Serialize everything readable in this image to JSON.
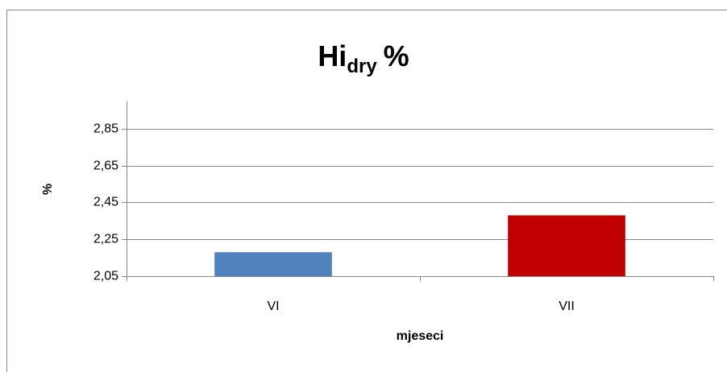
{
  "chart_data": {
    "type": "bar",
    "title": {
      "main": "Hi",
      "subscript": "dry",
      "suffix": "%"
    },
    "x_label": "mjeseci",
    "y_label": "%",
    "categories": [
      "VI",
      "VII"
    ],
    "values": [
      2.18,
      2.38
    ],
    "colors": [
      "#4f81bd",
      "#c00000"
    ],
    "ylim": [
      2.05,
      3.0
    ],
    "yticks": [
      {
        "value": 2.05,
        "label": "2,05"
      },
      {
        "value": 2.25,
        "label": "2,25"
      },
      {
        "value": 2.45,
        "label": "2,45"
      },
      {
        "value": 2.65,
        "label": "2,65"
      },
      {
        "value": 2.85,
        "label": "2,85"
      }
    ],
    "grid": true
  }
}
